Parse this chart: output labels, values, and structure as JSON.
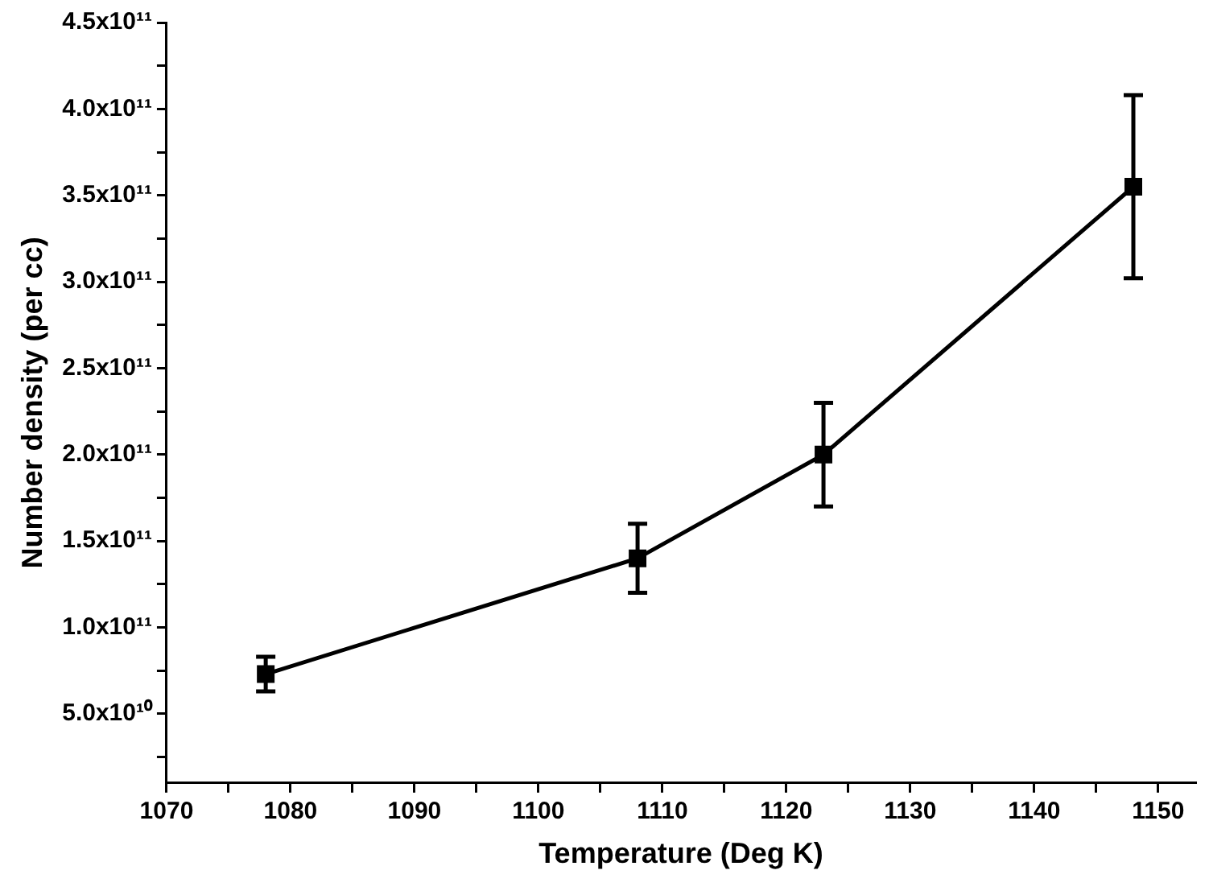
{
  "chart_data": {
    "type": "line",
    "xlabel": "Temperature (Deg K)",
    "ylabel": "Number density (per cc)",
    "x": [
      1078,
      1108,
      1123,
      1148
    ],
    "series": [
      {
        "color": "#000000",
        "values": [
          73000000000.0,
          140000000000.0,
          200000000000.0,
          355000000000.0
        ],
        "errors": [
          10000000000.0,
          20000000000.0,
          30000000000.0,
          53000000000.0
        ]
      }
    ],
    "xlim": [
      1070,
      1153
    ],
    "xticks": [
      1070,
      {
        "value": 1075,
        "label": null
      },
      1080,
      {
        "value": 1085,
        "label": null
      },
      1090,
      {
        "value": 1095,
        "label": null
      },
      1100,
      {
        "value": 1105,
        "label": null
      },
      1110,
      {
        "value": 1115,
        "label": null
      },
      1120,
      {
        "value": 1125,
        "label": null
      },
      1130,
      {
        "value": 1135,
        "label": null
      },
      1140,
      {
        "value": 1145,
        "label": null
      },
      1150
    ],
    "ylim": [
      10000000000.0,
      450000000000.0
    ],
    "yticks": [
      {
        "value": 25000000000.0,
        "label": null
      },
      {
        "value": 50000000000.0,
        "label": "5.0x10¹⁰"
      },
      {
        "value": 75000000000.0,
        "label": null
      },
      {
        "value": 100000000000.0,
        "label": "1.0x10¹¹"
      },
      {
        "value": 125000000000.0,
        "label": null
      },
      {
        "value": 150000000000.0,
        "label": "1.5x10¹¹"
      },
      {
        "value": 175000000000.0,
        "label": null
      },
      {
        "value": 200000000000.0,
        "label": "2.0x10¹¹"
      },
      {
        "value": 225000000000.0,
        "label": null
      },
      {
        "value": 250000000000.0,
        "label": "2.5x10¹¹"
      },
      {
        "value": 275000000000.0,
        "label": null
      },
      {
        "value": 300000000000.0,
        "label": "3.0x10¹¹"
      },
      {
        "value": 325000000000.0,
        "label": null
      },
      {
        "value": 350000000000.0,
        "label": "3.5x10¹¹"
      },
      {
        "value": 375000000000.0,
        "label": null
      },
      {
        "value": 400000000000.0,
        "label": "4.0x10¹¹"
      },
      {
        "value": 425000000000.0,
        "label": null
      },
      {
        "value": 450000000000.0,
        "label": "4.5x10¹¹"
      }
    ],
    "grid": false,
    "legend": false,
    "marker": "square",
    "line_style": "solid"
  }
}
